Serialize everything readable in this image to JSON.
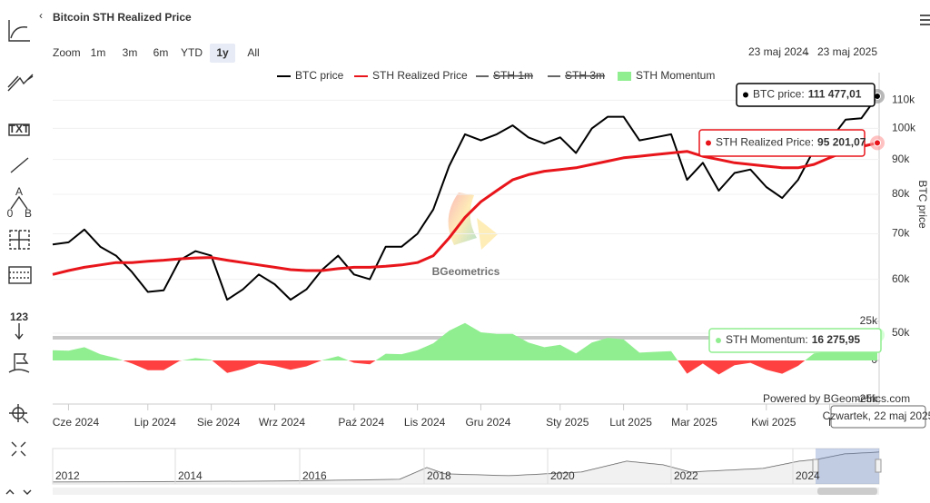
{
  "title": "Bitcoin STH Realized Price",
  "toolbar": {
    "labels": [
      "TXT",
      "A",
      "0",
      "B",
      "123"
    ]
  },
  "zoom": {
    "label": "Zoom",
    "buttons": [
      "1m",
      "3m",
      "6m",
      "YTD",
      "1y",
      "All"
    ],
    "selected": 4
  },
  "range": {
    "from": "23 maj 2024",
    "arrow": "→",
    "to": "23 maj 2025"
  },
  "chart_data": {
    "type": "line",
    "categories": [
      null,
      "Cze 2024",
      null,
      null,
      null,
      null,
      "Lip 2024",
      null,
      null,
      null,
      "Sie 2024",
      null,
      null,
      null,
      "Wrz 2024",
      null,
      null,
      null,
      null,
      "Paź 2024",
      null,
      null,
      null,
      "Lis 2024",
      null,
      null,
      null,
      "Gru 2024",
      null,
      null,
      null,
      null,
      "Sty 2025",
      null,
      null,
      null,
      "Lut 2025",
      null,
      null,
      null,
      "Mar 2025",
      null,
      null,
      null,
      null,
      "Kwi 2025",
      null,
      null,
      null,
      "Maj",
      null,
      null,
      null
    ],
    "series": [
      {
        "name": "BTC price",
        "color": "#000000",
        "axis": "y",
        "values": [
          67500,
          68000,
          71000,
          67000,
          65000,
          61500,
          57500,
          57800,
          64000,
          66000,
          65000,
          56000,
          58000,
          61000,
          59000,
          56000,
          58000,
          62000,
          65000,
          61000,
          60000,
          67000,
          67000,
          70000,
          76000,
          88000,
          98000,
          96000,
          98000,
          101000,
          97000,
          95000,
          97000,
          92000,
          100000,
          104000,
          104000,
          96000,
          97000,
          98000,
          84000,
          89000,
          81000,
          86000,
          87000,
          82000,
          79000,
          84000,
          93000,
          96000,
          103000,
          103500,
          111477.01
        ]
      },
      {
        "name": "STH Realized Price",
        "color": "#e8151b",
        "axis": "y",
        "values": [
          61000,
          61800,
          62500,
          63000,
          63500,
          63500,
          63800,
          64000,
          64300,
          64500,
          64600,
          64000,
          63500,
          63000,
          62500,
          62000,
          61800,
          61800,
          62200,
          62500,
          62500,
          62700,
          63000,
          63500,
          65000,
          69000,
          74000,
          78000,
          81000,
          84000,
          85500,
          86500,
          87000,
          87500,
          88500,
          89500,
          90500,
          91000,
          91500,
          92000,
          92500,
          91000,
          90000,
          89000,
          88500,
          88000,
          87500,
          87500,
          88500,
          90500,
          92500,
          94000,
          95201.07
        ]
      },
      {
        "name": "STH Momentum",
        "type": "area",
        "color": "#90ee90",
        "negative_color": "#ff4040",
        "axis": "y2",
        "values": [
          6500,
          6200,
          8500,
          4000,
          1500,
          -2000,
          -6300,
          -6200,
          -300,
          1500,
          400,
          -8000,
          -5500,
          -2000,
          -3500,
          -6000,
          -3800,
          200,
          2800,
          -1500,
          -2500,
          4300,
          4000,
          6500,
          11000,
          19000,
          24000,
          18000,
          17000,
          17000,
          11500,
          8500,
          10000,
          4500,
          11500,
          14500,
          13500,
          5000,
          5500,
          6000,
          -8500,
          -2000,
          -9000,
          -3000,
          -1500,
          -6000,
          -8500,
          -3500,
          4500,
          5500,
          10500,
          9500,
          16275.95
        ]
      }
    ],
    "hidden_series": [
      {
        "name": "STH 1m",
        "color": "#666666"
      },
      {
        "name": "STH 3m",
        "color": "#666666"
      }
    ],
    "ylabel": "BTC price",
    "log_y": true,
    "ylim": [
      50000,
      120000
    ],
    "yticks": [
      {
        "value": 50000,
        "label": "50k"
      },
      {
        "value": 60000,
        "label": "60k"
      },
      {
        "value": 70000,
        "label": "70k"
      },
      {
        "value": 80000,
        "label": "80k"
      },
      {
        "value": 90000,
        "label": "90k"
      },
      {
        "value": 100000,
        "label": "100k"
      },
      {
        "value": 110000,
        "label": "110k"
      }
    ],
    "y2lim": [
      -25000,
      25000
    ],
    "y2ticks": [
      {
        "value": -25000,
        "label": "-25k"
      },
      0,
      {
        "value": 25000,
        "label": "25k"
      }
    ],
    "grid": true,
    "legend": "top",
    "tooltips": [
      {
        "label": "BTC price:",
        "value": "111 477,01",
        "color": "#000000"
      },
      {
        "label": "STH Realized Price:",
        "value": "95 201,07",
        "color": "#e8151b"
      },
      {
        "label": "STH Momentum:",
        "value": "16 275,95",
        "color": "#90ee90"
      }
    ],
    "tooltip_date": "Czwartek, 22 maj 2025",
    "watermark": "BGeometrics",
    "credits": "Powered by BGeometrics.com"
  },
  "navigator": {
    "labels": [
      "2012",
      "2014",
      "2016",
      "2018",
      "2020",
      "2022",
      "2024"
    ]
  }
}
